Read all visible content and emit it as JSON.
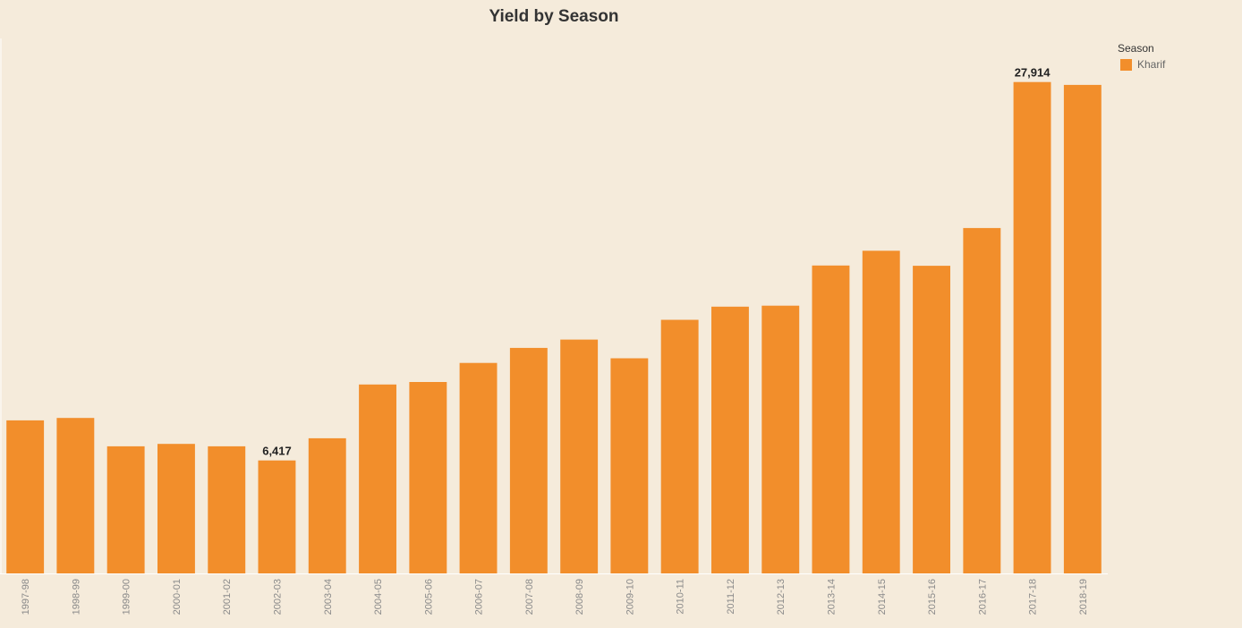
{
  "colors": {
    "bar": "#f28e2b",
    "background": "#f5ebdb"
  },
  "legend": {
    "title": "Season",
    "items": [
      {
        "label": "Kharif",
        "color": "#f28e2b"
      }
    ]
  },
  "chart_data": {
    "type": "bar",
    "title": "Yield by Season",
    "xlabel": "",
    "ylabel": "",
    "ylim": [
      0,
      30000
    ],
    "grid": false,
    "legend_position": "top-right",
    "categories": [
      "1997-98",
      "1998-99",
      "1999-00",
      "2000-01",
      "2001-02",
      "2002-03",
      "2003-04",
      "2004-05",
      "2005-06",
      "2006-07",
      "2007-08",
      "2008-09",
      "2009-10",
      "2010-11",
      "2011-12",
      "2012-13",
      "2013-14",
      "2014-15",
      "2015-16",
      "2016-17",
      "2017-18",
      "2018-19"
    ],
    "series": [
      {
        "name": "Kharif",
        "values": [
          8695,
          8832,
          7220,
          7357,
          7219,
          6417,
          7680,
          10731,
          10875,
          11955,
          12812,
          13285,
          12221,
          14404,
          15154,
          15207,
          17491,
          18329,
          17474,
          19621,
          27914,
          27750
        ]
      }
    ],
    "data_labels": [
      {
        "category": "2002-03",
        "text": "6,417"
      },
      {
        "category": "2017-18",
        "text": "27,914"
      }
    ]
  }
}
